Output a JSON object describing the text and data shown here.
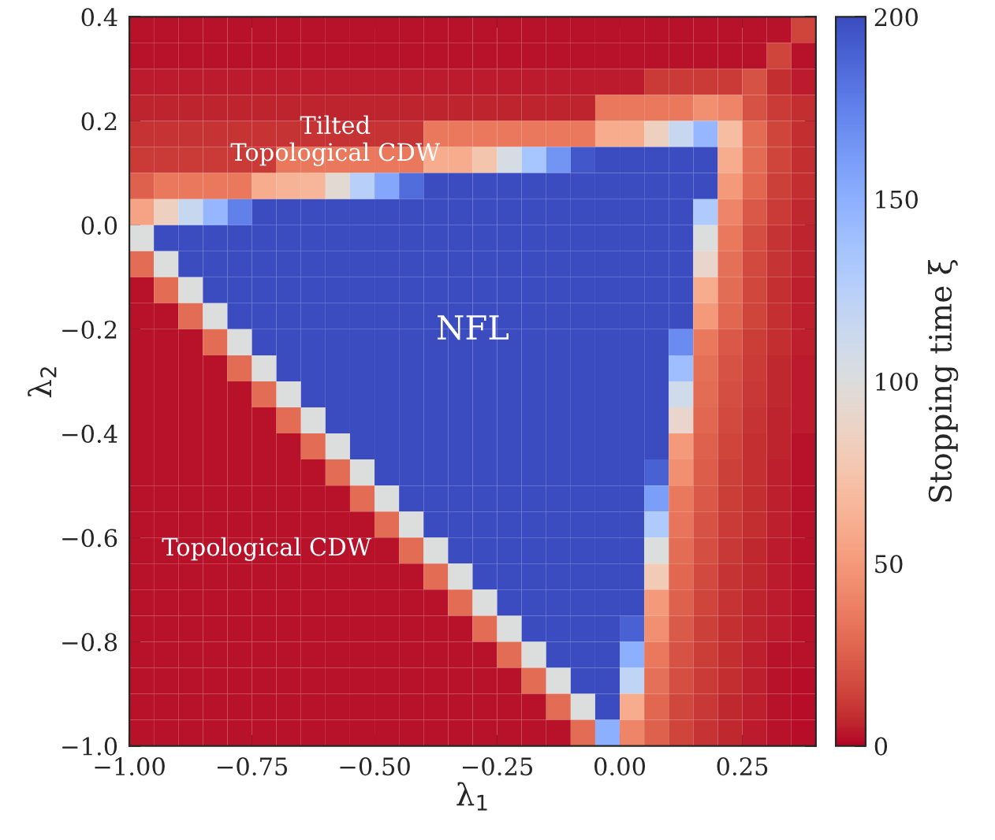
{
  "chart_data": {
    "type": "heatmap",
    "xlabel": "λ$_{1}$",
    "ylabel": "λ$_{2}$",
    "clabel": "Stopping time ξ",
    "x": [
      -0.975,
      -0.925,
      -0.875,
      -0.825,
      -0.775,
      -0.725,
      -0.675,
      -0.625,
      -0.575,
      -0.525,
      -0.475,
      -0.425,
      -0.375,
      -0.325,
      -0.275,
      -0.225,
      -0.175,
      -0.125,
      -0.075,
      -0.025,
      0.025,
      0.075,
      0.125,
      0.175,
      0.225,
      0.275,
      0.325,
      0.375
    ],
    "y": [
      0.375,
      0.325,
      0.275,
      0.225,
      0.175,
      0.125,
      0.075,
      0.025,
      -0.025,
      -0.075,
      -0.125,
      -0.175,
      -0.225,
      -0.275,
      -0.325,
      -0.375,
      -0.425,
      -0.475,
      -0.525,
      -0.575,
      -0.625,
      -0.675,
      -0.725,
      -0.775,
      -0.825,
      -0.875,
      -0.925,
      -0.975
    ],
    "cells": [
      [
        3,
        3,
        3,
        3,
        3,
        3,
        3,
        3,
        3,
        3,
        3,
        3,
        3,
        3,
        3,
        3,
        3,
        3,
        3,
        3,
        3,
        3,
        3,
        3,
        3,
        3,
        3,
        15
      ],
      [
        3,
        3,
        3,
        3,
        3,
        3,
        3,
        3,
        3,
        3,
        3,
        3,
        3,
        3,
        3,
        3,
        3,
        3,
        3,
        3,
        3,
        3,
        3,
        3,
        3,
        3,
        15,
        3
      ],
      [
        4,
        4,
        4,
        4,
        4,
        4,
        4,
        4,
        4,
        4,
        4,
        4,
        4,
        4,
        4,
        4,
        4,
        4,
        4,
        4,
        4,
        12,
        12,
        12,
        12,
        20,
        8,
        4
      ],
      [
        6,
        6,
        6,
        6,
        6,
        6,
        6,
        6,
        6,
        6,
        6,
        6,
        6,
        6,
        6,
        6,
        6,
        6,
        6,
        35,
        35,
        35,
        35,
        45,
        40,
        20,
        12,
        8
      ],
      [
        10,
        10,
        10,
        10,
        10,
        10,
        10,
        10,
        10,
        10,
        10,
        10,
        35,
        35,
        35,
        35,
        35,
        35,
        35,
        60,
        60,
        85,
        115,
        145,
        70,
        30,
        15,
        8
      ],
      [
        12,
        12,
        12,
        12,
        12,
        12,
        35,
        35,
        35,
        35,
        35,
        35,
        60,
        60,
        75,
        105,
        135,
        165,
        195,
        200,
        200,
        200,
        200,
        200,
        60,
        30,
        15,
        8
      ],
      [
        25,
        35,
        35,
        35,
        35,
        60,
        64,
        65,
        95,
        125,
        155,
        185,
        200,
        200,
        200,
        200,
        200,
        200,
        200,
        200,
        200,
        200,
        200,
        200,
        50,
        28,
        14,
        8
      ],
      [
        55,
        85,
        115,
        145,
        175,
        200,
        200,
        200,
        200,
        200,
        200,
        200,
        200,
        200,
        200,
        200,
        200,
        200,
        200,
        200,
        200,
        200,
        200,
        130,
        40,
        22,
        12,
        7
      ],
      [
        100,
        200,
        200,
        200,
        200,
        200,
        200,
        200,
        200,
        200,
        200,
        200,
        200,
        200,
        200,
        200,
        200,
        200,
        200,
        200,
        200,
        200,
        200,
        100,
        35,
        18,
        10,
        6
      ],
      [
        30,
        100,
        200,
        200,
        200,
        200,
        200,
        200,
        200,
        200,
        200,
        200,
        200,
        200,
        200,
        200,
        200,
        200,
        200,
        200,
        200,
        200,
        200,
        90,
        32,
        17,
        10,
        6
      ],
      [
        3,
        30,
        100,
        200,
        200,
        200,
        200,
        200,
        200,
        200,
        200,
        200,
        200,
        200,
        200,
        200,
        200,
        200,
        200,
        200,
        200,
        200,
        200,
        60,
        30,
        16,
        9,
        5
      ],
      [
        3,
        3,
        30,
        100,
        200,
        200,
        200,
        200,
        200,
        200,
        200,
        200,
        200,
        200,
        200,
        200,
        200,
        200,
        200,
        200,
        200,
        200,
        200,
        50,
        28,
        15,
        9,
        5
      ],
      [
        3,
        3,
        3,
        30,
        100,
        200,
        200,
        200,
        200,
        200,
        200,
        200,
        200,
        200,
        200,
        200,
        200,
        200,
        200,
        200,
        200,
        200,
        170,
        35,
        22,
        13,
        8,
        5
      ],
      [
        3,
        3,
        3,
        3,
        30,
        100,
        200,
        200,
        200,
        200,
        200,
        200,
        200,
        200,
        200,
        200,
        200,
        200,
        200,
        200,
        200,
        200,
        140,
        32,
        20,
        12,
        7,
        4
      ],
      [
        3,
        3,
        3,
        3,
        3,
        30,
        100,
        200,
        200,
        200,
        200,
        200,
        200,
        200,
        200,
        200,
        200,
        200,
        200,
        200,
        200,
        200,
        110,
        30,
        18,
        11,
        7,
        4
      ],
      [
        3,
        3,
        3,
        3,
        3,
        3,
        30,
        100,
        200,
        200,
        200,
        200,
        200,
        200,
        200,
        200,
        200,
        200,
        200,
        200,
        200,
        200,
        90,
        28,
        17,
        10,
        6,
        4
      ],
      [
        3,
        3,
        3,
        3,
        3,
        3,
        3,
        30,
        100,
        200,
        200,
        200,
        200,
        200,
        200,
        200,
        200,
        200,
        200,
        200,
        200,
        200,
        50,
        25,
        15,
        9,
        6,
        3
      ],
      [
        3,
        3,
        3,
        3,
        3,
        3,
        3,
        3,
        30,
        100,
        200,
        200,
        200,
        200,
        200,
        200,
        200,
        200,
        200,
        200,
        200,
        190,
        45,
        24,
        14,
        9,
        5,
        3
      ],
      [
        3,
        3,
        3,
        3,
        3,
        3,
        3,
        3,
        3,
        30,
        100,
        200,
        200,
        200,
        200,
        200,
        200,
        200,
        200,
        200,
        200,
        160,
        35,
        22,
        13,
        8,
        5,
        3
      ],
      [
        3,
        3,
        3,
        3,
        3,
        3,
        3,
        3,
        3,
        3,
        30,
        100,
        200,
        200,
        200,
        200,
        200,
        200,
        200,
        200,
        200,
        130,
        33,
        20,
        12,
        8,
        5,
        3
      ],
      [
        3,
        3,
        3,
        3,
        3,
        3,
        3,
        3,
        3,
        3,
        3,
        30,
        100,
        200,
        200,
        200,
        200,
        200,
        200,
        200,
        200,
        100,
        30,
        18,
        11,
        7,
        4,
        3
      ],
      [
        3,
        3,
        3,
        3,
        3,
        3,
        3,
        3,
        3,
        3,
        3,
        3,
        30,
        100,
        200,
        200,
        200,
        200,
        200,
        200,
        200,
        80,
        28,
        17,
        10,
        7,
        4,
        3
      ],
      [
        3,
        3,
        3,
        3,
        3,
        3,
        3,
        3,
        3,
        3,
        3,
        3,
        3,
        30,
        100,
        200,
        200,
        200,
        200,
        200,
        200,
        50,
        25,
        15,
        10,
        6,
        4,
        3
      ],
      [
        3,
        3,
        3,
        3,
        3,
        3,
        3,
        3,
        3,
        3,
        3,
        3,
        3,
        3,
        30,
        100,
        200,
        200,
        200,
        200,
        190,
        45,
        23,
        14,
        9,
        6,
        4,
        3
      ],
      [
        3,
        3,
        3,
        3,
        3,
        3,
        3,
        3,
        3,
        3,
        3,
        3,
        3,
        3,
        3,
        30,
        100,
        200,
        200,
        200,
        150,
        35,
        20,
        13,
        8,
        5,
        3,
        3
      ],
      [
        3,
        3,
        3,
        3,
        3,
        3,
        3,
        3,
        3,
        3,
        3,
        3,
        3,
        3,
        3,
        3,
        30,
        100,
        200,
        200,
        120,
        32,
        18,
        12,
        8,
        5,
        3,
        2
      ],
      [
        3,
        3,
        3,
        3,
        3,
        3,
        3,
        3,
        3,
        3,
        3,
        3,
        3,
        3,
        3,
        3,
        3,
        30,
        100,
        200,
        60,
        28,
        16,
        11,
        7,
        5,
        3,
        2
      ],
      [
        3,
        3,
        3,
        3,
        3,
        3,
        3,
        3,
        3,
        3,
        3,
        3,
        3,
        3,
        3,
        3,
        3,
        3,
        30,
        150,
        40,
        25,
        15,
        10,
        7,
        4,
        3,
        2
      ]
    ],
    "xlim": [
      -1.0,
      0.4
    ],
    "ylim": [
      -1.0,
      0.4
    ],
    "xticks": [
      {
        "value": -1.0,
        "label": "−1.00"
      },
      {
        "value": -0.75,
        "label": "−0.75"
      },
      {
        "value": -0.5,
        "label": "−0.50"
      },
      {
        "value": -0.25,
        "label": "−0.25"
      },
      {
        "value": 0.0,
        "label": "0.00"
      },
      {
        "value": 0.25,
        "label": "0.25"
      }
    ],
    "yticks": [
      {
        "value": -1.0,
        "label": "−1.0"
      },
      {
        "value": -0.8,
        "label": "−0.8"
      },
      {
        "value": -0.6,
        "label": "−0.6"
      },
      {
        "value": -0.4,
        "label": "−0.4"
      },
      {
        "value": -0.2,
        "label": "−0.2"
      },
      {
        "value": 0.0,
        "label": "0.0"
      },
      {
        "value": 0.2,
        "label": "0.2"
      },
      {
        "value": 0.4,
        "label": "0.4"
      }
    ],
    "clim": [
      0,
      200
    ],
    "cticks": [
      0,
      50,
      100,
      150,
      200
    ],
    "annotations": [
      "NFL",
      "Tilted\nTopological CDW",
      "Topological CDW"
    ]
  }
}
